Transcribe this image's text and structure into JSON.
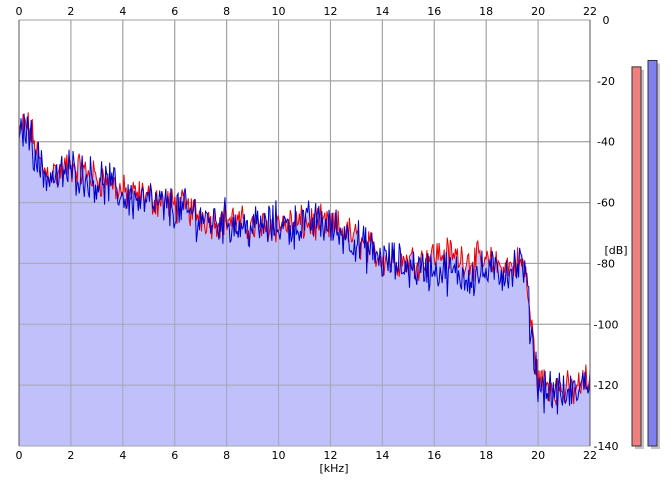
{
  "chart_data": {
    "type": "area",
    "title": "",
    "xlabel": "[kHz]",
    "ylabel": "[dB]",
    "xlim": [
      0,
      22
    ],
    "ylim": [
      -140,
      0
    ],
    "x_ticks": [
      "0",
      "2",
      "4",
      "6",
      "8",
      "10",
      "12",
      "14",
      "16",
      "18",
      "20",
      "22"
    ],
    "y_ticks": [
      "0",
      "-20",
      "-40",
      "-60",
      "-80",
      "-100",
      "-120",
      "-140"
    ],
    "grid": true,
    "colors": {
      "fill": "#c0c0fa",
      "left_channel": "#ee0000",
      "right_channel": "#0000cc",
      "grid": "#a0a0a0",
      "meter_left": "#f08080",
      "meter_right": "#8080f0"
    },
    "series": [
      {
        "color": "#ee0000",
        "x": [
          0,
          0.2,
          0.5,
          0.8,
          1,
          1.5,
          2,
          2.5,
          3,
          3.5,
          4,
          4.5,
          5,
          5.5,
          6,
          6.5,
          7,
          7.5,
          8,
          8.5,
          9,
          9.5,
          10,
          10.5,
          11,
          11.5,
          12,
          12.5,
          13,
          13.5,
          14,
          14.5,
          15,
          15.5,
          16,
          16.5,
          17,
          17.5,
          18,
          18.5,
          19,
          19.3,
          19.5,
          19.7,
          20,
          20.5,
          21,
          21.5,
          22
        ],
        "values": [
          -40,
          -33,
          -38,
          -47,
          -50,
          -50,
          -48,
          -50,
          -52,
          -53,
          -57,
          -58,
          -58,
          -60,
          -61,
          -62,
          -64,
          -66,
          -65,
          -67,
          -68,
          -68,
          -67,
          -67,
          -67,
          -67,
          -68,
          -69,
          -72,
          -75,
          -78,
          -79,
          -79,
          -79,
          -77,
          -77,
          -78,
          -79,
          -80,
          -81,
          -81,
          -80,
          -82,
          -98,
          -118,
          -120,
          -122,
          -121,
          -118
        ]
      },
      {
        "color": "#0000cc",
        "x": [
          0,
          0.2,
          0.5,
          0.8,
          1,
          1.5,
          2,
          2.5,
          3,
          3.5,
          4,
          4.5,
          5,
          5.5,
          6,
          6.5,
          7,
          7.5,
          8,
          8.5,
          9,
          9.5,
          10,
          10.5,
          11,
          11.5,
          12,
          12.5,
          13,
          13.5,
          14,
          14.5,
          15,
          15.5,
          16,
          16.5,
          17,
          17.5,
          18,
          18.5,
          19,
          19.3,
          19.5,
          19.7,
          20,
          20.5,
          21,
          21.5,
          22
        ],
        "values": [
          -42,
          -34,
          -40,
          -48,
          -51,
          -52,
          -49,
          -51,
          -53,
          -54,
          -58,
          -59,
          -60,
          -61,
          -62,
          -63,
          -65,
          -66,
          -66,
          -68,
          -68,
          -68,
          -67,
          -68,
          -67,
          -66,
          -68,
          -70,
          -73,
          -76,
          -79,
          -80,
          -81,
          -82,
          -82,
          -83,
          -84,
          -84,
          -83,
          -83,
          -82,
          -81,
          -82,
          -100,
          -120,
          -122,
          -124,
          -122,
          -117
        ]
      }
    ],
    "meters": [
      {
        "color": "#f08080",
        "level": 0.89
      },
      {
        "color": "#8080f0",
        "level": 0.905
      }
    ]
  }
}
